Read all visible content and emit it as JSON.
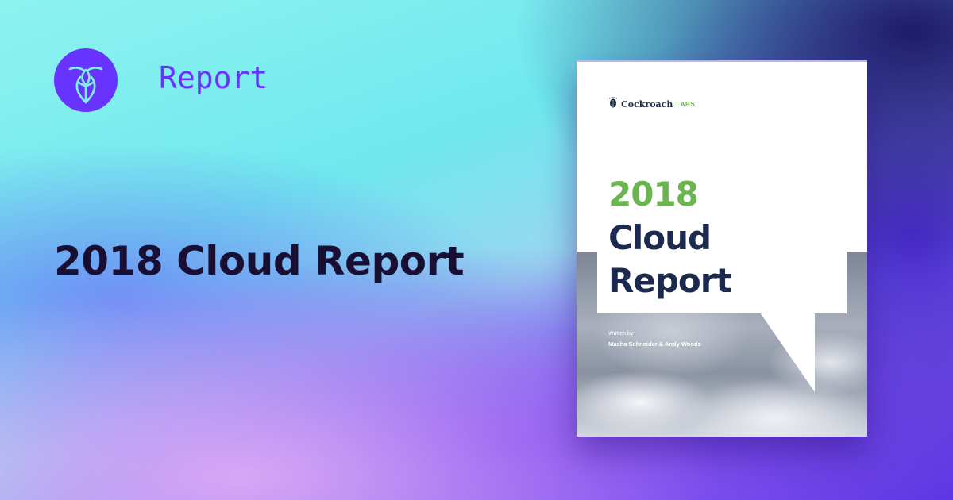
{
  "brand": {
    "tag": "Report",
    "logo_icon": "cockroach-icon",
    "logo_color": "#6933ff"
  },
  "headline": "2018 Cloud Report",
  "cover": {
    "brand_name": "Cockroach",
    "brand_suffix": "LABS",
    "year": "2018",
    "title_line1": "Cloud",
    "title_line2": "Report",
    "written_by": "Written by",
    "authors": "Masha Schneider & Andy Woods",
    "year_color": "#6bb550",
    "title_color": "#1d2a4f"
  }
}
